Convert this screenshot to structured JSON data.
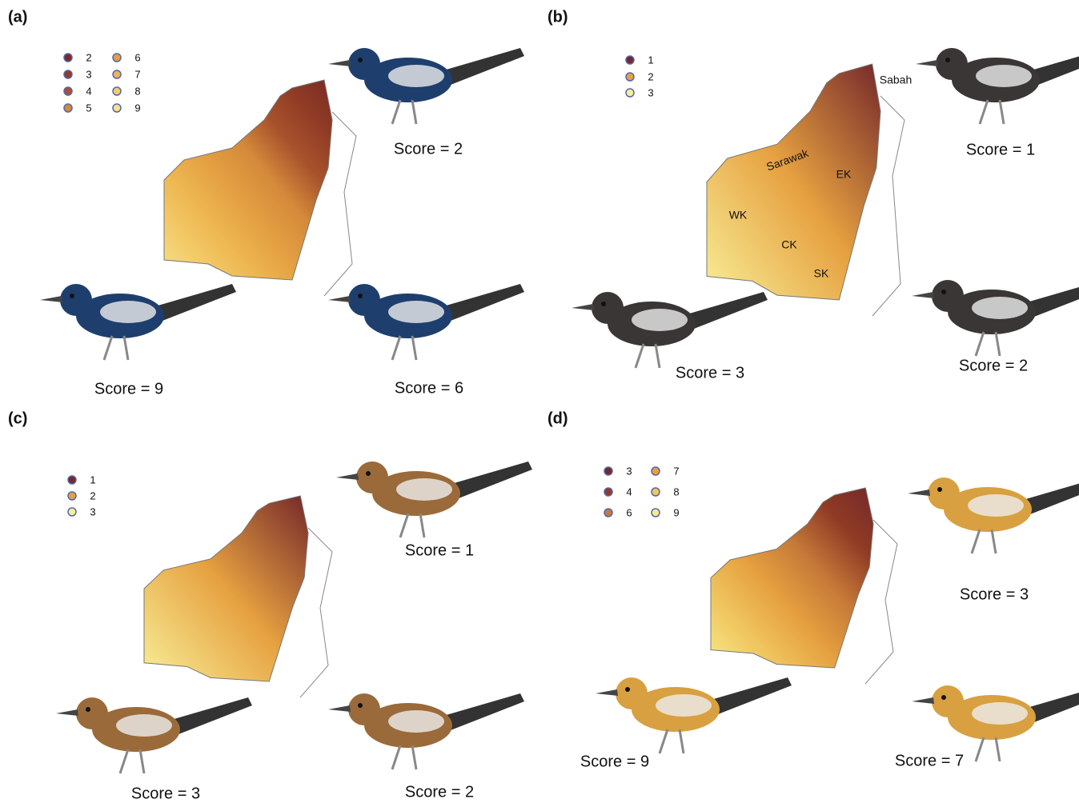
{
  "panels": [
    {
      "label": "(a)",
      "legend": [
        {
          "label": "2",
          "color": "#7a2a22"
        },
        {
          "label": "3",
          "color": "#8f3b25"
        },
        {
          "label": "4",
          "color": "#a8522c"
        },
        {
          "label": "5",
          "color": "#d48a3a"
        },
        {
          "label": "6",
          "color": "#e39f42"
        },
        {
          "label": "7",
          "color": "#edb650"
        },
        {
          "label": "8",
          "color": "#f3cc6a"
        },
        {
          "label": "9",
          "color": "#f7e08e"
        }
      ],
      "scores": [
        "Score = 2",
        "Score = 9",
        "Score = 6"
      ],
      "bird_color": "#1e3f6e"
    },
    {
      "label": "(b)",
      "legend": [
        {
          "label": "1",
          "color": "#74282a"
        },
        {
          "label": "2",
          "color": "#e6a140"
        },
        {
          "label": "3",
          "color": "#f8ef98"
        }
      ],
      "scores": [
        "Score = 1",
        "Score = 3",
        "Score = 2"
      ],
      "regions": [
        "Sabah",
        "Sarawak",
        "EK",
        "WK",
        "CK",
        "SK"
      ],
      "bird_color": "#3a3635"
    },
    {
      "label": "(c)",
      "legend": [
        {
          "label": "1",
          "color": "#74282a"
        },
        {
          "label": "2",
          "color": "#e6a140"
        },
        {
          "label": "3",
          "color": "#f8ef98"
        }
      ],
      "scores": [
        "Score = 1",
        "Score = 3",
        "Score = 2"
      ],
      "bird_color": "#9a6a3a"
    },
    {
      "label": "(d)",
      "legend": [
        {
          "label": "3",
          "color": "#74282a"
        },
        {
          "label": "4",
          "color": "#8f3b25"
        },
        {
          "label": "6",
          "color": "#c67a38"
        },
        {
          "label": "7",
          "color": "#e6a140"
        },
        {
          "label": "8",
          "color": "#f0c660"
        },
        {
          "label": "9",
          "color": "#f8ea88"
        }
      ],
      "scores": [
        "Score = 3",
        "Score = 9",
        "Score = 7"
      ],
      "bird_color": "#d8a040"
    }
  ]
}
